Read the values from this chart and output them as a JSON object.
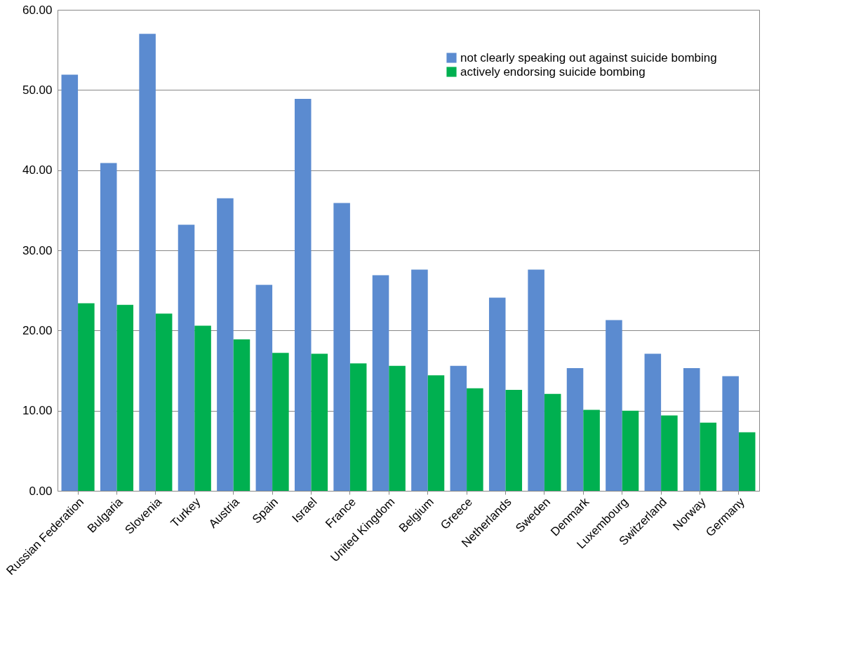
{
  "chart_data": {
    "type": "bar",
    "categories": [
      "Russian Federation",
      "Bulgaria",
      "Slovenia",
      "Turkey",
      "Austria",
      "Spain",
      "Israel",
      "France",
      "United Kingdom",
      "Belgium",
      "Greece",
      "Netherlands",
      "Sweden",
      "Denmark",
      "Luxembourg",
      "Switzerland",
      "Norway",
      "Germany"
    ],
    "series": [
      {
        "name": "not clearly speaking out against suicide bombing",
        "color": "#5b8bd0",
        "values": [
          51.9,
          40.9,
          57.0,
          33.2,
          36.5,
          25.7,
          48.9,
          35.9,
          26.9,
          27.6,
          15.6,
          24.1,
          27.6,
          15.3,
          21.3,
          17.1,
          15.3,
          14.3
        ]
      },
      {
        "name": "actively endorsing suicide bombing",
        "color": "#00b050",
        "values": [
          23.4,
          23.2,
          22.1,
          20.6,
          18.9,
          17.2,
          17.1,
          15.9,
          15.6,
          14.4,
          12.8,
          12.6,
          12.1,
          10.1,
          10.0,
          9.4,
          8.5,
          7.3
        ]
      }
    ],
    "ylim": [
      0,
      60
    ],
    "yticks": [
      {
        "value": 0,
        "label": "0.00"
      },
      {
        "value": 10,
        "label": "10.00"
      },
      {
        "value": 20,
        "label": "20.00"
      },
      {
        "value": 30,
        "label": "30.00"
      },
      {
        "value": 40,
        "label": "40.00"
      },
      {
        "value": 50,
        "label": "50.00"
      },
      {
        "value": 60,
        "label": "60.00"
      }
    ],
    "grid": "y",
    "legend": "top right"
  }
}
